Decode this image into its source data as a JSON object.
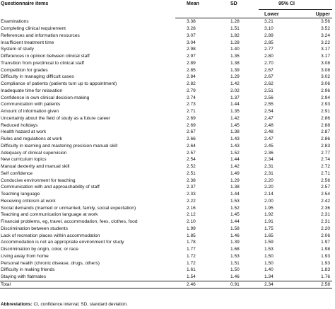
{
  "headers": {
    "item": "Questionnaire items",
    "mean": "Mean",
    "sd": "SD",
    "ci": "95% CI",
    "lower": "Lower",
    "upper": "Upper"
  },
  "rows": [
    {
      "item": "Examinations",
      "mean": "3.38",
      "sd": "1.28",
      "lower": "3.21",
      "upper": "3.56"
    },
    {
      "item": "Completing clinical requirement",
      "mean": "3.28",
      "sd": "1.51",
      "lower": "3.10",
      "upper": "3.52"
    },
    {
      "item": "References and information resources",
      "mean": "3.07",
      "sd": "1.82",
      "lower": "2.89",
      "upper": "3.24"
    },
    {
      "item": "Insufficient treatment time",
      "mean": "3.04",
      "sd": "1.28",
      "lower": "2.85",
      "upper": "3.22"
    },
    {
      "item": "System of study",
      "mean": "2.98",
      "sd": "1.40",
      "lower": "2.77",
      "upper": "3.17"
    },
    {
      "item": "Differences in opinion between clinical staff",
      "mean": "2.97",
      "sd": "1.35",
      "lower": "2.80",
      "upper": "3.17"
    },
    {
      "item": "Transition from preclinical to clinical staff",
      "mean": "2.89",
      "sd": "1.38",
      "lower": "2.70",
      "upper": "3.08"
    },
    {
      "item": "Competition for grades",
      "mean": "2.85",
      "sd": "1.39",
      "lower": "2.67",
      "upper": "3.08"
    },
    {
      "item": "Difficulty in managing difficult cases",
      "mean": "2.84",
      "sd": "1.29",
      "lower": "2.67",
      "upper": "3.02"
    },
    {
      "item": "Compliance of patients (patients turn up to appointment)",
      "mean": "2.82",
      "sd": "1.42",
      "lower": "2.62",
      "upper": "3.06"
    },
    {
      "item": "Inadequate time for relaxation",
      "mean": "2.79",
      "sd": "2.02",
      "lower": "2.51",
      "upper": "2.96"
    },
    {
      "item": "Confidence in own clinical decision-making",
      "mean": "2.74",
      "sd": "1.37",
      "lower": "2.56",
      "upper": "2.94"
    },
    {
      "item": "Communication with patients",
      "mean": "2.73",
      "sd": "1.44",
      "lower": "2.55",
      "upper": "2.93"
    },
    {
      "item": "Amount of information given",
      "mean": "2.71",
      "sd": "1.35",
      "lower": "2.54",
      "upper": "2.91"
    },
    {
      "item": "Uncertainty about the field of study as a future career",
      "mean": "2.69",
      "sd": "1.42",
      "lower": "2.47",
      "upper": "2.86"
    },
    {
      "item": "Reduced holidays",
      "mean": "2.69",
      "sd": "1.45",
      "lower": "2.48",
      "upper": "2.88"
    },
    {
      "item": "Health hazard at work",
      "mean": "2.67",
      "sd": "1.38",
      "lower": "2.48",
      "upper": "2.87"
    },
    {
      "item": "Rules and regulations at work",
      "mean": "2.66",
      "sd": "1.43",
      "lower": "2.47",
      "upper": "2.86"
    },
    {
      "item": "Difficulty in learning and mastering precision manual skill",
      "mean": "2.64",
      "sd": "1.43",
      "lower": "2.45",
      "upper": "2.83"
    },
    {
      "item": "Adequacy of clinical supervision",
      "mean": "2.57",
      "sd": "1.52",
      "lower": "2.36",
      "upper": "2.77"
    },
    {
      "item": "New curriculum topics",
      "mean": "2.54",
      "sd": "1.44",
      "lower": "2.34",
      "upper": "2.74"
    },
    {
      "item": "Manual dexterity and manual skill",
      "mean": "2.52",
      "sd": "1.42",
      "lower": "2.31",
      "upper": "2.72"
    },
    {
      "item": "Self confidence",
      "mean": "2.51",
      "sd": "1.49",
      "lower": "2.31",
      "upper": "2.71"
    },
    {
      "item": "Conducive environment for teaching",
      "mean": "2.38",
      "sd": "1.29",
      "lower": "2.20",
      "upper": "2.56"
    },
    {
      "item": "Communication with and approachability of staff",
      "mean": "2.37",
      "sd": "1.38",
      "lower": "2.20",
      "upper": "2.57"
    },
    {
      "item": "Teaching language",
      "mean": "2.33",
      "sd": "1.44",
      "lower": "2.14",
      "upper": "2.54"
    },
    {
      "item": "Receiving criticism at work",
      "mean": "2.22",
      "sd": "1.53",
      "lower": "2.00",
      "upper": "2.42"
    },
    {
      "item": "Social demands (married or unmarried, family, social expectation)",
      "mean": "2.16",
      "sd": "1.52",
      "lower": "1.95",
      "upper": "2.36"
    },
    {
      "item": "Teaching and communication language at work",
      "mean": "2.12",
      "sd": "1.45",
      "lower": "1.92",
      "upper": "2.31"
    },
    {
      "item": "Financial problems, eg, travel, accommodation, fees, clothes, food",
      "mean": "2.10",
      "sd": "1.44",
      "lower": "1.91",
      "upper": "2.31"
    },
    {
      "item": "Discrimination between students",
      "mean": "1.99",
      "sd": "1.58",
      "lower": "1.75",
      "upper": "2.20"
    },
    {
      "item": "Lack of recreation places within accommodation",
      "mean": "1.85",
      "sd": "1.46",
      "lower": "1.65",
      "upper": "2.06"
    },
    {
      "item": "Accommodation is not an appropriate environment for study",
      "mean": "1.78",
      "sd": "1.39",
      "lower": "1.59",
      "upper": "1.97"
    },
    {
      "item": "Discrimination by origin, color, or race",
      "mean": "1.77",
      "sd": "1.68",
      "lower": "1.53",
      "upper": "1.98"
    },
    {
      "item": "Living away from home",
      "mean": "1.72",
      "sd": "1.53",
      "lower": "1.50",
      "upper": "1.93"
    },
    {
      "item": "Personal health (chronic disease, drugs, others)",
      "mean": "1.72",
      "sd": "1.51",
      "lower": "1.50",
      "upper": "1.93"
    },
    {
      "item": "Difficulty in making friends",
      "mean": "1.61",
      "sd": "1.50",
      "lower": "1.40",
      "upper": "1.83"
    },
    {
      "item": "Staying with flatmates",
      "mean": "1.54",
      "sd": "1.46",
      "lower": "1.34",
      "upper": "1.76"
    }
  ],
  "total": {
    "item": "Total",
    "mean": "2.46",
    "sd": "0.91",
    "lower": "2.34",
    "upper": "2.58"
  },
  "footnote": {
    "label": "Abbreviations:",
    "text": " CI, confidence interval; SD, standard deviation."
  }
}
